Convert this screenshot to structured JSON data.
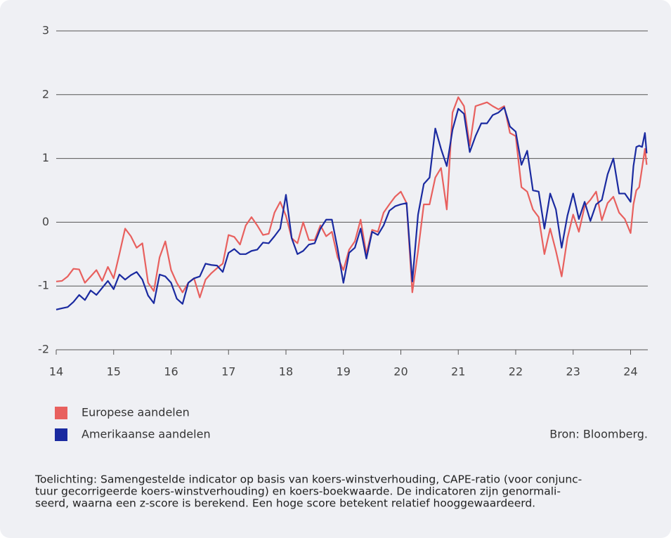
{
  "chart_data": {
    "type": "line",
    "xlim": [
      14,
      24.3
    ],
    "xticks": [
      14,
      15,
      16,
      17,
      18,
      19,
      20,
      21,
      22,
      23,
      24
    ],
    "ylim": [
      -2,
      3
    ],
    "yticks": [
      -2,
      -1,
      0,
      1,
      2,
      3
    ],
    "grid": true,
    "x": [
      14.0,
      14.1,
      14.2,
      14.3,
      14.4,
      14.5,
      14.6,
      14.7,
      14.8,
      14.9,
      15.0,
      15.1,
      15.2,
      15.3,
      15.4,
      15.5,
      15.6,
      15.7,
      15.8,
      15.9,
      16.0,
      16.1,
      16.2,
      16.3,
      16.4,
      16.5,
      16.6,
      16.7,
      16.8,
      16.9,
      17.0,
      17.1,
      17.2,
      17.3,
      17.4,
      17.5,
      17.6,
      17.7,
      17.8,
      17.9,
      18.0,
      18.1,
      18.2,
      18.3,
      18.4,
      18.5,
      18.6,
      18.7,
      18.8,
      18.9,
      19.0,
      19.1,
      19.2,
      19.3,
      19.4,
      19.5,
      19.6,
      19.7,
      19.8,
      19.9,
      20.0,
      20.1,
      20.2,
      20.3,
      20.4,
      20.5,
      20.6,
      20.7,
      20.8,
      20.9,
      21.0,
      21.1,
      21.2,
      21.3,
      21.4,
      21.5,
      21.6,
      21.7,
      21.8,
      21.9,
      22.0,
      22.1,
      22.2,
      22.3,
      22.4,
      22.5,
      22.6,
      22.7,
      22.8,
      22.9,
      23.0,
      23.1,
      23.2,
      23.3,
      23.4,
      23.5,
      23.6,
      23.7,
      23.8,
      23.9,
      24.0,
      24.05,
      24.1,
      24.15,
      24.2,
      24.25,
      24.28
    ],
    "series": [
      {
        "name": "Europese aandelen",
        "color": "#e8605e",
        "values": [
          -0.93,
          -0.92,
          -0.85,
          -0.73,
          -0.74,
          -0.95,
          -0.85,
          -0.75,
          -0.92,
          -0.7,
          -0.88,
          -0.5,
          -0.1,
          -0.22,
          -0.4,
          -0.33,
          -0.95,
          -1.08,
          -0.55,
          -0.3,
          -0.75,
          -0.95,
          -1.1,
          -0.95,
          -0.88,
          -1.18,
          -0.9,
          -0.8,
          -0.72,
          -0.65,
          -0.2,
          -0.23,
          -0.35,
          -0.05,
          0.08,
          -0.05,
          -0.2,
          -0.18,
          0.15,
          0.32,
          0.1,
          -0.25,
          -0.33,
          0.0,
          -0.28,
          -0.28,
          -0.05,
          -0.22,
          -0.15,
          -0.55,
          -0.75,
          -0.43,
          -0.3,
          0.04,
          -0.5,
          -0.12,
          -0.15,
          0.15,
          0.28,
          0.4,
          0.48,
          0.3,
          -1.1,
          -0.45,
          0.28,
          0.28,
          0.7,
          0.85,
          0.2,
          1.72,
          1.96,
          1.82,
          1.2,
          1.82,
          1.85,
          1.88,
          1.82,
          1.77,
          1.82,
          1.4,
          1.35,
          0.55,
          0.48,
          0.2,
          0.08,
          -0.5,
          -0.1,
          -0.45,
          -0.85,
          -0.25,
          0.12,
          -0.15,
          0.25,
          0.35,
          0.48,
          0.03,
          0.3,
          0.4,
          0.15,
          0.05,
          -0.17,
          0.28,
          0.5,
          0.55,
          0.85,
          1.15,
          0.9
        ]
      },
      {
        "name": "Amerikaanse aandelen",
        "color": "#1a2aa0",
        "values": [
          -1.37,
          -1.35,
          -1.33,
          -1.25,
          -1.14,
          -1.22,
          -1.07,
          -1.14,
          -1.03,
          -0.92,
          -1.05,
          -0.82,
          -0.9,
          -0.83,
          -0.78,
          -0.9,
          -1.15,
          -1.27,
          -0.82,
          -0.85,
          -0.95,
          -1.2,
          -1.28,
          -0.95,
          -0.88,
          -0.85,
          -0.65,
          -0.67,
          -0.68,
          -0.78,
          -0.48,
          -0.42,
          -0.5,
          -0.5,
          -0.45,
          -0.43,
          -0.32,
          -0.33,
          -0.22,
          -0.1,
          0.43,
          -0.25,
          -0.5,
          -0.45,
          -0.35,
          -0.33,
          -0.1,
          0.04,
          0.04,
          -0.42,
          -0.95,
          -0.48,
          -0.4,
          -0.1,
          -0.57,
          -0.15,
          -0.2,
          -0.05,
          0.18,
          0.25,
          0.28,
          0.3,
          -0.93,
          0.12,
          0.6,
          0.7,
          1.47,
          1.15,
          0.88,
          1.45,
          1.78,
          1.7,
          1.1,
          1.35,
          1.55,
          1.55,
          1.68,
          1.72,
          1.8,
          1.5,
          1.42,
          0.9,
          1.12,
          0.5,
          0.48,
          -0.1,
          0.45,
          0.2,
          -0.4,
          0.1,
          0.45,
          0.05,
          0.32,
          0.02,
          0.28,
          0.35,
          0.75,
          1.0,
          0.45,
          0.45,
          0.32,
          0.88,
          1.18,
          1.2,
          1.18,
          1.4,
          1.08
        ]
      }
    ],
    "source": "Bron: Bloomberg.",
    "note": [
      "Toelichting: Samengestelde indicator op basis van koers-winstverhouding, CAPE-ratio (voor conjunc-",
      "tuur gecorrigeerde koers-winstverhouding) en koers-boekwaarde. De indicatoren zijn genormali-",
      "seerd, waarna een z-score is berekend. Een hoge score betekent relatief hooggewaardeerd."
    ]
  }
}
